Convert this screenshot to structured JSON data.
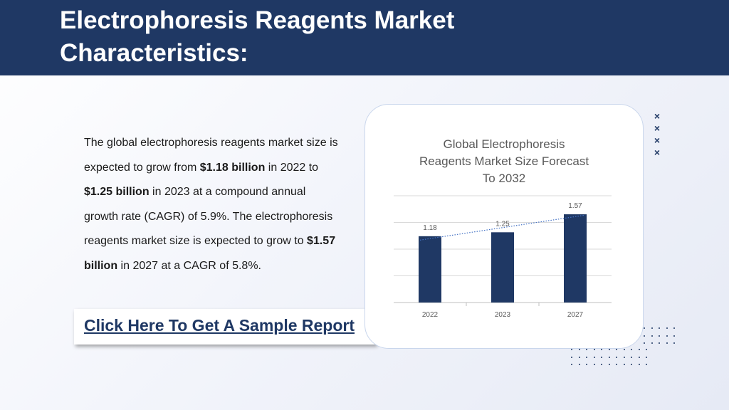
{
  "header": {
    "title_line1": "Electrophoresis Reagents Market",
    "title_line2": "Characteristics:"
  },
  "body": {
    "t1": "The global electrophoresis reagents market size is expected to grow from ",
    "b1": "$1.18 billion",
    "t2": " in 2022 to ",
    "b2": "$1.25 billion",
    "t3": " in 2023 at a compound annual growth rate (CAGR) of 5.9%. The electrophoresis reagents market size is expected to grow to ",
    "b3": "$1.57 billion",
    "t4": " in 2027 at a CAGR of 5.8%."
  },
  "cta": {
    "label": "Click Here To Get A Sample Report"
  },
  "chart_data": {
    "type": "bar",
    "title_line1": "Global Electrophoresis",
    "title_line2": "Reagents Market Size Forecast",
    "title_line3": "To 2032",
    "categories": [
      "2022",
      "2023",
      "2027"
    ],
    "values": [
      1.18,
      1.25,
      1.57
    ],
    "data_labels": [
      "1.18",
      "1.25",
      "1.57"
    ],
    "ylim": [
      0,
      1.9
    ],
    "grid": true,
    "trendline": "linear-dotted",
    "bar_color": "#1f3864",
    "trend_color": "#4472c4"
  },
  "decor": {
    "xmark": "×",
    "xmark_icon": "x-mark-icon",
    "accent": "#1f3864"
  }
}
